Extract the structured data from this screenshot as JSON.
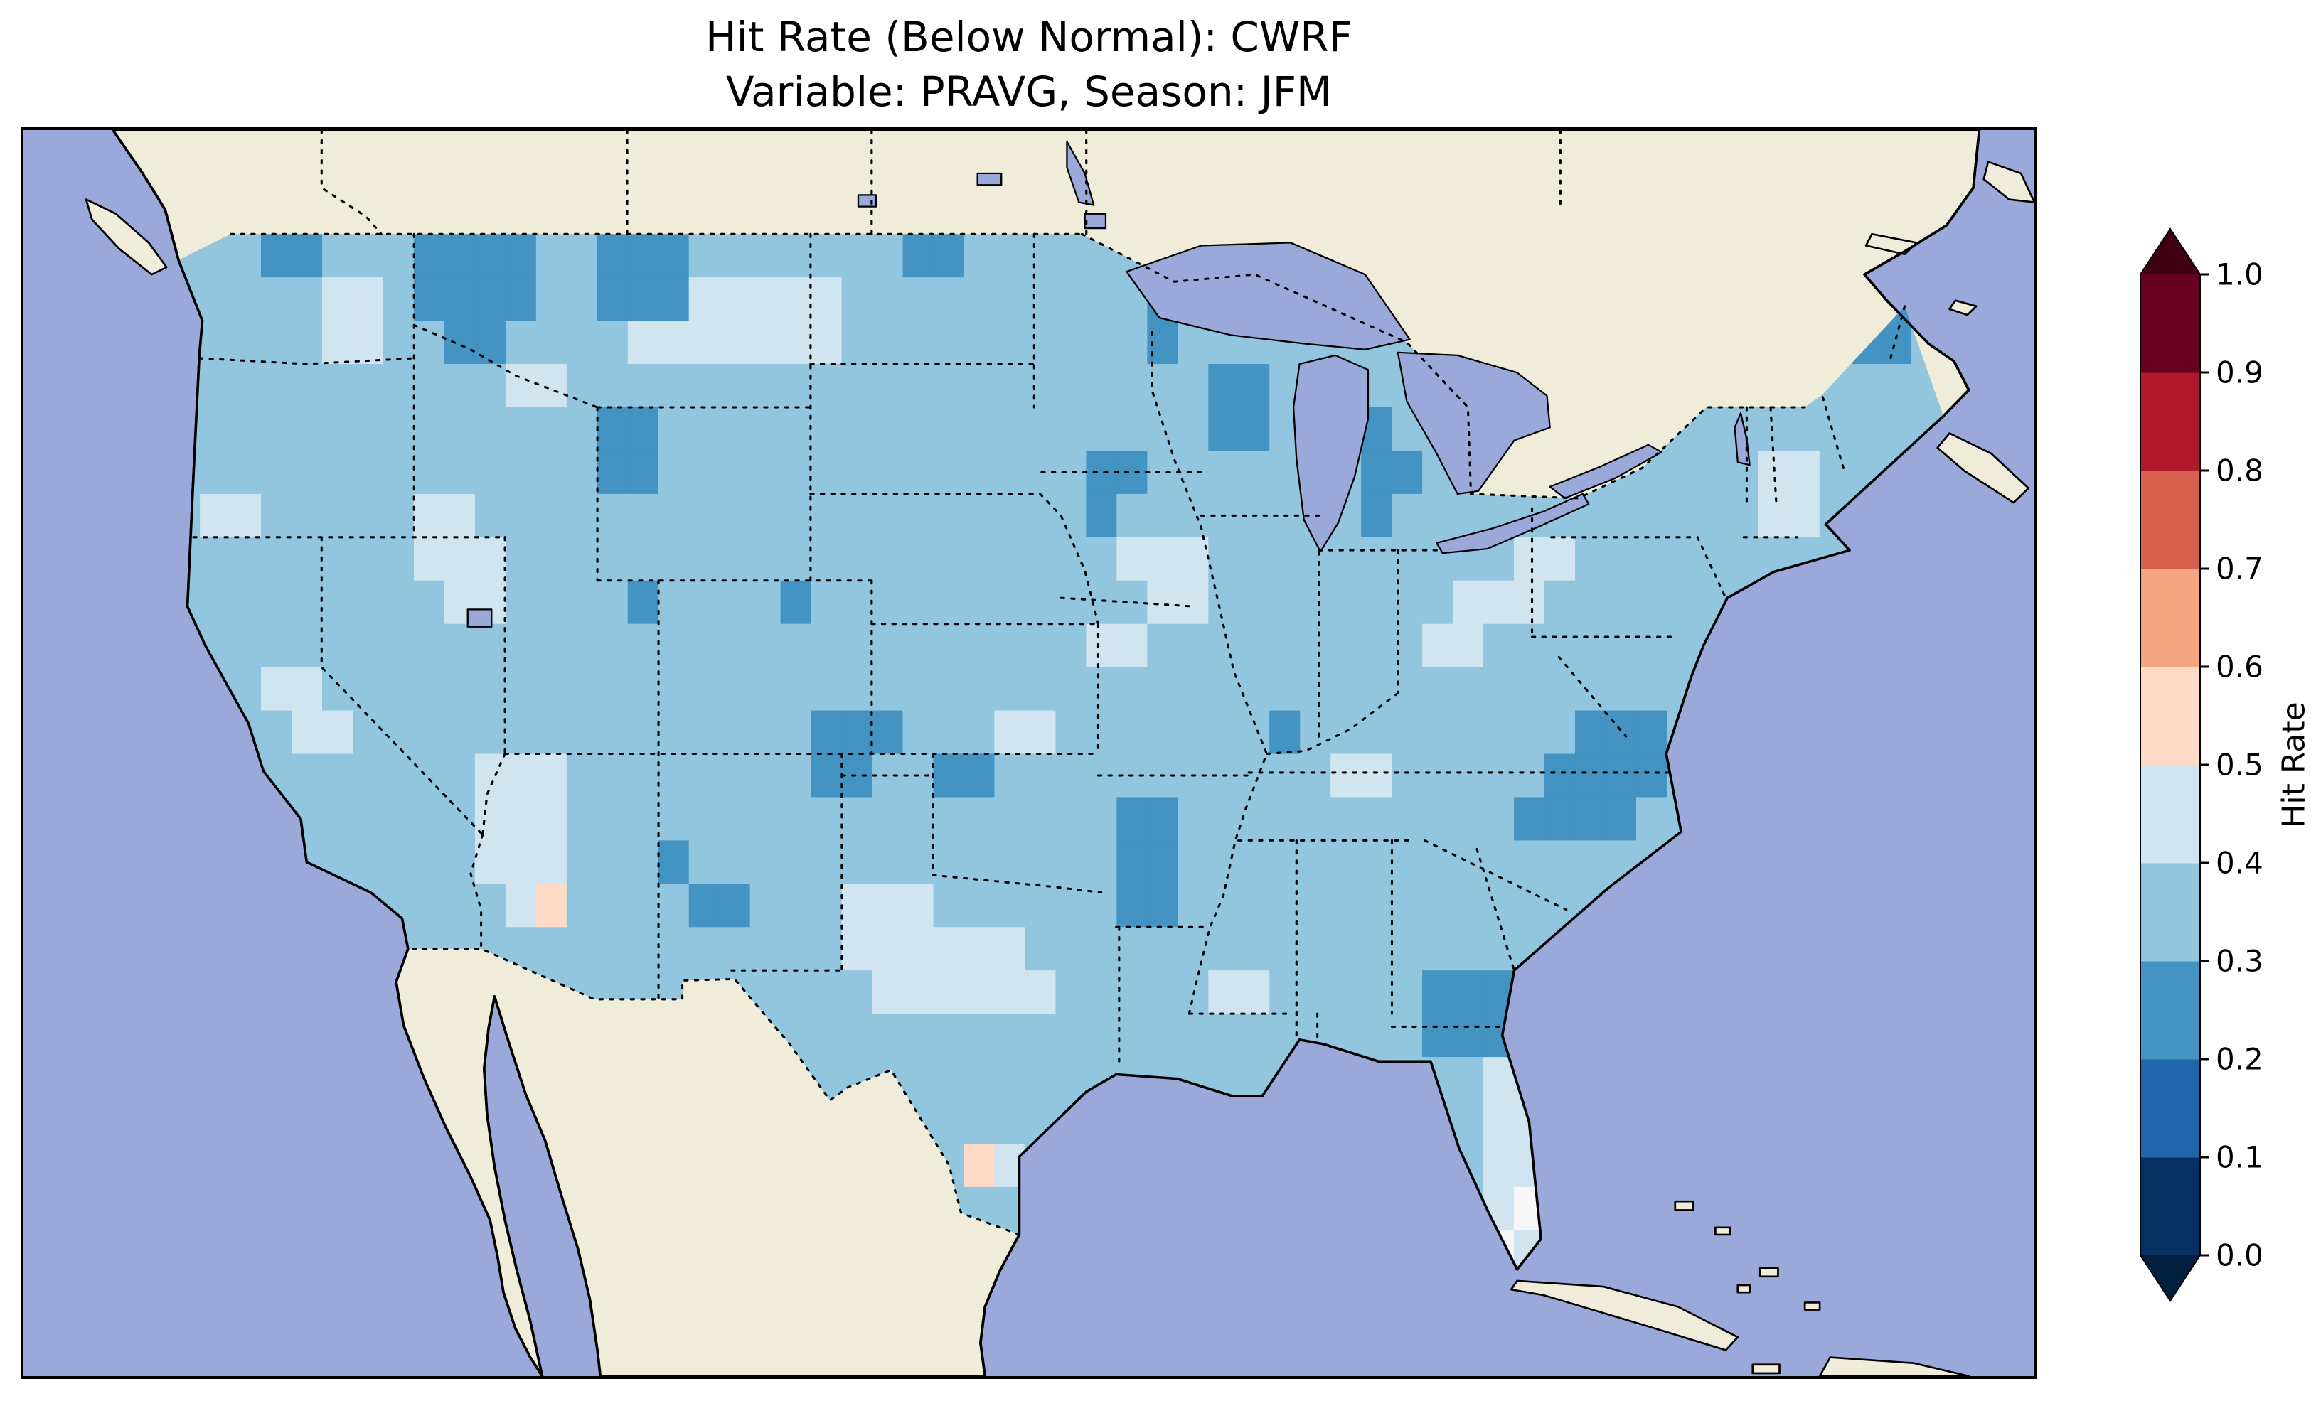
{
  "figure": {
    "title_line1": "Hit Rate (Below Normal): CWRF",
    "title_line2": "Variable: PRAVG, Season: JFM"
  },
  "map": {
    "ocean_color": "#9aa9da",
    "land_color": "#efecd9",
    "lake_color": "#9aa9da",
    "coast_color": "#000000",
    "frame_color": "#000000"
  },
  "colorbar": {
    "label": "Hit Rate",
    "ticks": [
      "0.0",
      "0.1",
      "0.2",
      "0.3",
      "0.4",
      "0.5",
      "0.6",
      "0.7",
      "0.8",
      "0.9",
      "1.0"
    ],
    "bin_colors_low_to_high": [
      "#053061",
      "#2166ac",
      "#4393c3",
      "#92c5de",
      "#d1e5f0",
      "#fddbc7",
      "#f4a582",
      "#d6604d",
      "#b2182b",
      "#67001f"
    ],
    "extend_low_color": "#031f40",
    "extend_high_color": "#3f0011"
  },
  "chart_data": {
    "type": "heatmap",
    "title": "Hit Rate (Below Normal): CWRF",
    "subtitle": "Variable: PRAVG, Season: JFM",
    "metric": "Hit Rate (Below Normal)",
    "model": "CWRF",
    "variable": "PRAVG",
    "season": "JFM",
    "region": "Continental United States (CONUS)",
    "colorbar_label": "Hit Rate",
    "value_range": [
      0.0,
      1.0
    ],
    "colormap": "RdBu_r, discrete 0.1 bins with extend triangles",
    "legend_position": "right vertical colorbar",
    "grid": {
      "lon_west": -125,
      "lon_east": -67,
      "lat_north": 50,
      "lat_south": 24,
      "cell_deg": 1.0,
      "cell_colors": {
        "2": "#4393c3",
        "3": "#92c5de",
        "4": "#d1e5f0",
        "5": "#fddbc7",
        "w": "#f7f7f7"
      },
      "legend": {
        "2": "0.2-0.3",
        "3": "0.3-0.4",
        "4": "0.4-0.5",
        "5": "0.5-0.6",
        "w": "~0.5",
        ".": "no data"
      },
      "rows_north_to_south": [
        "3332233322223322233333332233333333333333333333333333333333",
        "3332233322223322233333332233333333333333333333333333333333",
        "3333344322223322244444333333333322333333333333333333333223",
        "3333344332233334444444333333333323333333333333333333333223",
        "3333333333344333333333333333333333223333333333333333333333",
        "3333333333333322333333333333333333223332333333333333333333",
        "3333333333333322333333333333332233333332233333333333443333",
        "3443333344333333333333333333332333333332333333333333443333",
        "3333333344433333333333333333333444333333333344333333333333",
        "3333333334433332333323333333333344333333334443333333333333",
        "3333333333333333333333333333334433333333344333333333333333",
        "3334433333333333333333333333333333333333333333333333333333",
        "3333443333333333333332223334433333332333333333222333333333",
        "3333333333444333333332233223333333333344333332222333333333",
        "3333333333444333333333333333333223333333333322223333333333",
        "3333333333444333233333333333333223333333333333333333333333",
        "3333333333345333322333444333333223333333333333333333333333",
        "3333333333333333333333444444333333333333333333333333333333",
        "3333333333333333333333344444433333443333322233333333333333",
        "3333333333333333333333333333333333333333322233333333333333",
        "3333333333333333333333333333333333333333333443333333333333",
        "3333333333333333333333333333333333333333333443333333333333",
        "3333333333333333333333333354333333333333333443333333333333",
        "33333333333333333333333333333333333333333334w3333333333333",
        "3333333333333333333333333333333333333333333w43333333333333",
        "3333333333333333333333333333333333333333333333333333333333"
      ]
    },
    "summary": "Hit rates over CONUS are mostly 0.3-0.4 (light blue) with patches of 0.4-0.5 (pale blue); scattered 0.2-0.3 (darker blue) regions over N Idaho / W Montana, central Montana, NW Wyoming, SE Colorado, Oklahoma, Arkansas, S Minnesota, central Wisconsin, W Michigan, N Maine, Virginia/Chesapeake into N Carolina, and S Georgia / N Florida; rare 0.5-0.6 (pale pink) cells in Arizona and S Texas."
  }
}
